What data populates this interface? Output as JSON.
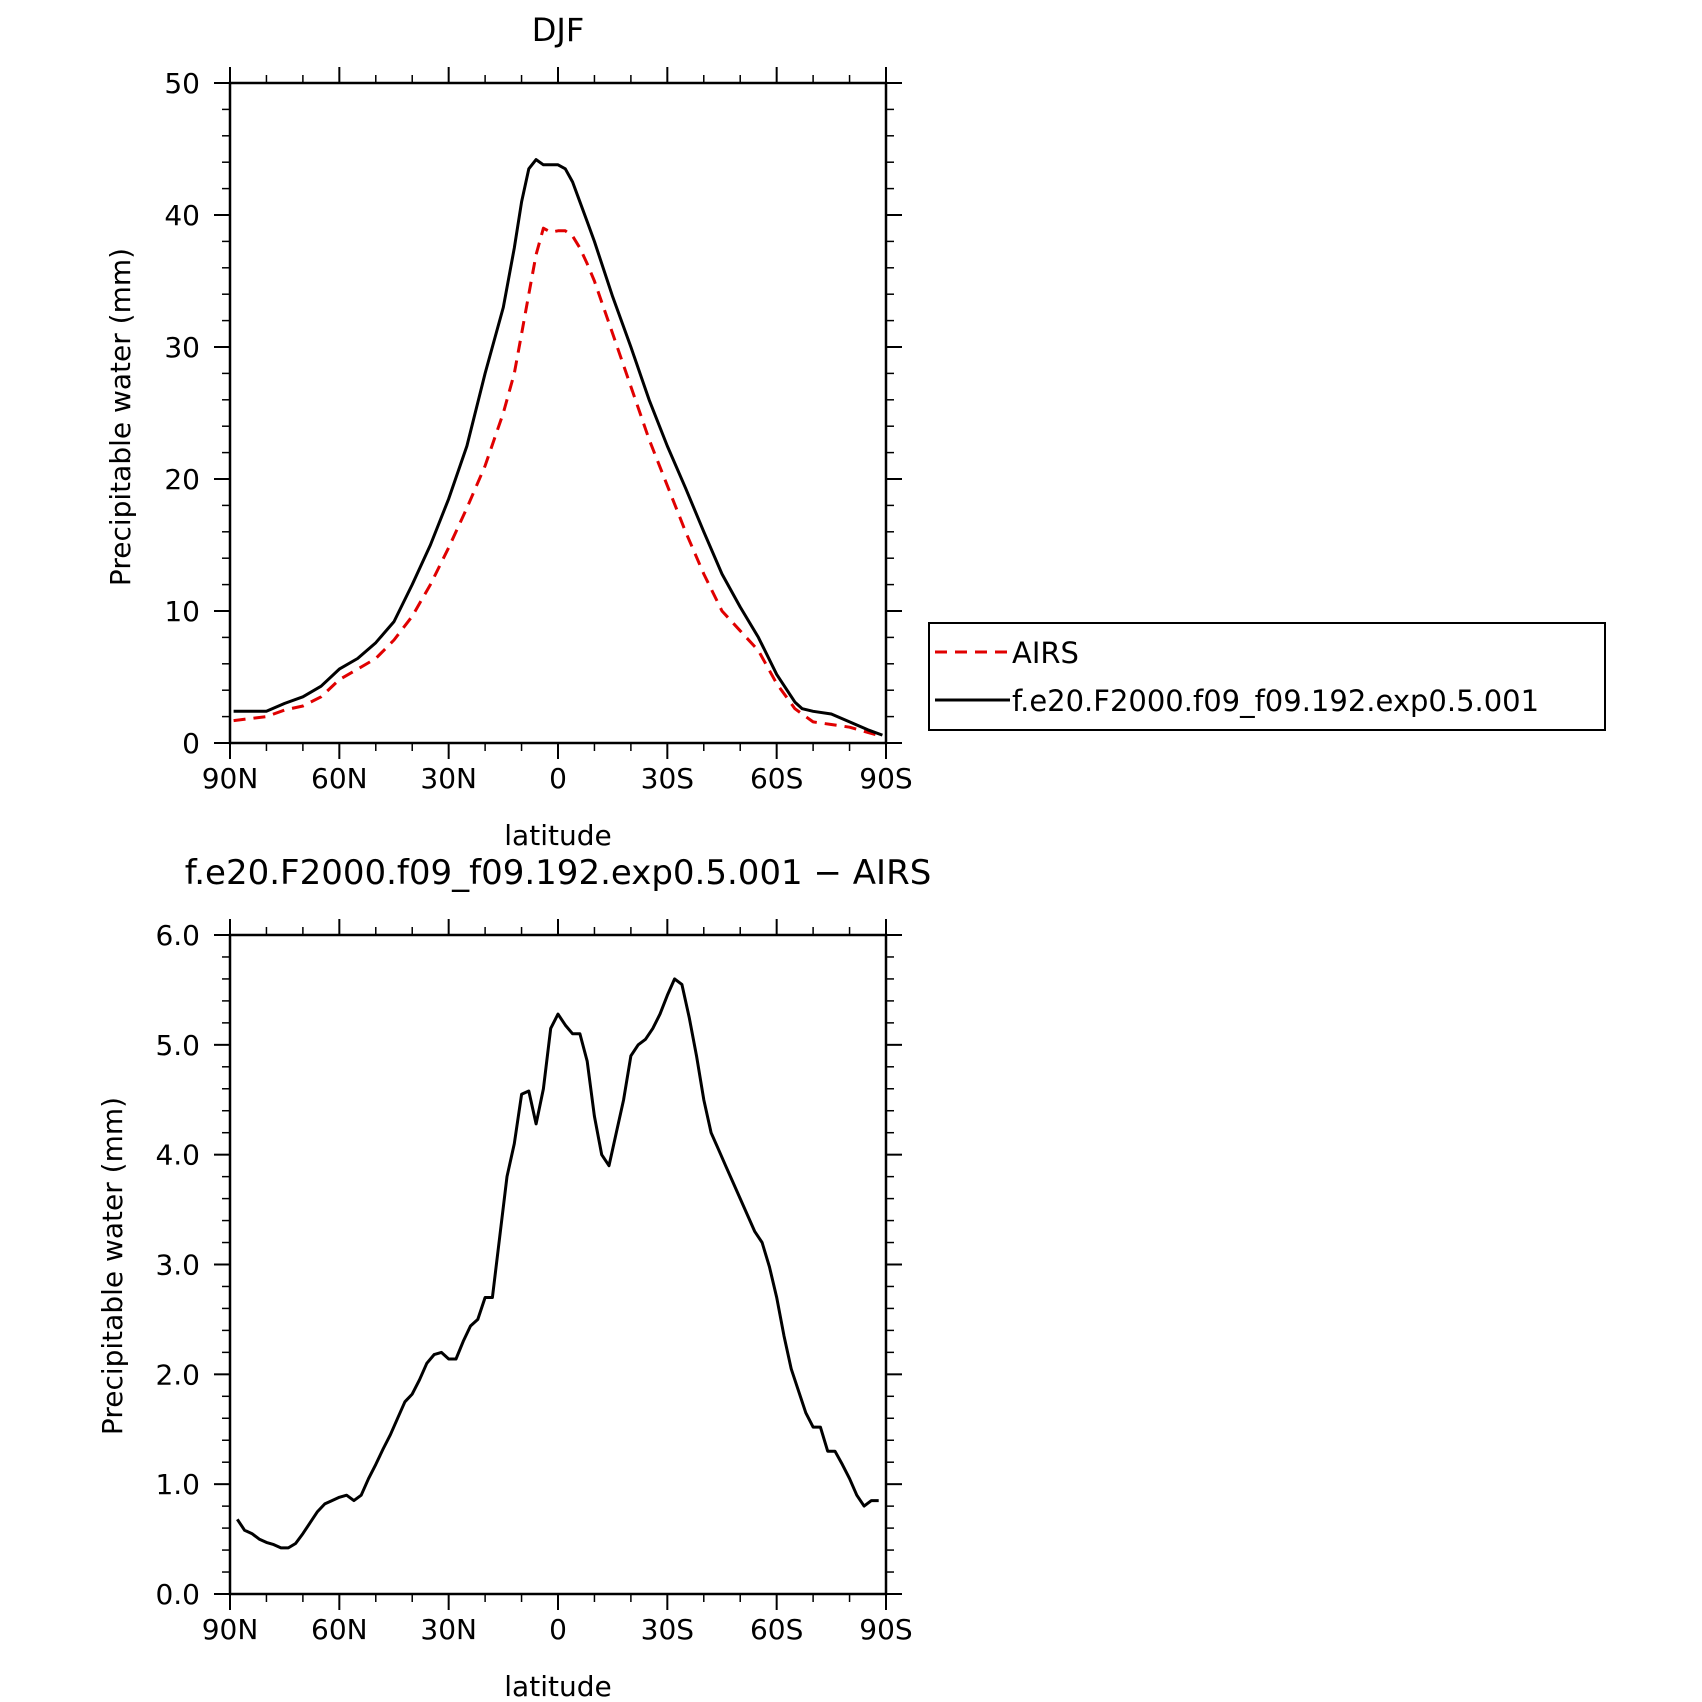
{
  "chart_data": [
    {
      "type": "line",
      "title": "DJF",
      "xlabel": "latitude",
      "ylabel": "Precipitable water (mm)",
      "xlim": [
        90,
        -90
      ],
      "ylim": [
        0,
        50
      ],
      "xticks": [
        90,
        60,
        30,
        0,
        -30,
        -60,
        -90
      ],
      "xtick_labels": [
        "90N",
        "60N",
        "30N",
        "0",
        "30S",
        "60S",
        "90S"
      ],
      "yticks": [
        0,
        10,
        20,
        30,
        40,
        50
      ],
      "ytick_labels": [
        "0",
        "10",
        "20",
        "30",
        "40",
        "50"
      ],
      "legend": {
        "placement": "right",
        "entries": [
          "AIRS",
          "f.e20.F2000.f09_f09.192.exp0.5.001"
        ]
      },
      "series": [
        {
          "name": "AIRS",
          "color": "#e00000",
          "dash": "dashed",
          "x": [
            89,
            80,
            75,
            70,
            65,
            60,
            55,
            50,
            45,
            40,
            35,
            30,
            25,
            20,
            15,
            12,
            10,
            8,
            6,
            4,
            2,
            0,
            -2,
            -4,
            -6,
            -8,
            -10,
            -15,
            -20,
            -25,
            -30,
            -35,
            -40,
            -45,
            -50,
            -55,
            -60,
            -65,
            -67,
            -70,
            -75,
            -80,
            -85,
            -89
          ],
          "y": [
            1.7,
            2.0,
            2.5,
            2.8,
            3.5,
            4.8,
            5.6,
            6.4,
            7.8,
            9.6,
            12,
            14.8,
            17.8,
            21,
            25,
            28,
            31,
            34,
            37,
            39,
            38.7,
            38.8,
            38.8,
            38.4,
            37.5,
            36.3,
            35,
            31,
            27,
            23,
            19.5,
            16,
            12.8,
            10,
            8.5,
            7,
            4.5,
            2.6,
            2.2,
            1.6,
            1.4,
            1.2,
            0.8,
            0.5
          ]
        },
        {
          "name": "f.e20.F2000.f09_f09.192.exp0.5.001",
          "color": "#000000",
          "dash": "solid",
          "x": [
            89,
            80,
            75,
            70,
            65,
            60,
            55,
            50,
            45,
            40,
            35,
            30,
            25,
            20,
            15,
            12,
            10,
            8,
            6,
            4,
            2,
            0,
            -2,
            -4,
            -6,
            -8,
            -10,
            -15,
            -20,
            -25,
            -30,
            -35,
            -40,
            -45,
            -50,
            -55,
            -60,
            -65,
            -67,
            -70,
            -75,
            -80,
            -85,
            -89
          ],
          "y": [
            2.4,
            2.4,
            3.0,
            3.5,
            4.3,
            5.6,
            6.4,
            7.6,
            9.2,
            12,
            15,
            18.5,
            22.5,
            28,
            33,
            37.5,
            41,
            43.5,
            44.2,
            43.8,
            43.8,
            43.8,
            43.5,
            42.5,
            41,
            39.5,
            38,
            33.8,
            30,
            26,
            22.5,
            19.3,
            16,
            12.8,
            10.3,
            8,
            5.2,
            3.1,
            2.6,
            2.4,
            2.2,
            1.6,
            1.0,
            0.6
          ]
        }
      ]
    },
    {
      "type": "line",
      "title": "f.e20.F2000.f09_f09.192.exp0.5.001 − AIRS",
      "xlabel": "latitude",
      "ylabel": "Precipitable water (mm)",
      "xlim": [
        90,
        -90
      ],
      "ylim": [
        0,
        6
      ],
      "xticks": [
        90,
        60,
        30,
        0,
        -30,
        -60,
        -90
      ],
      "xtick_labels": [
        "90N",
        "60N",
        "30N",
        "0",
        "30S",
        "60S",
        "90S"
      ],
      "yticks": [
        0,
        1,
        2,
        3,
        4,
        5,
        6
      ],
      "ytick_labels": [
        "0.0",
        "1.0",
        "2.0",
        "3.0",
        "4.0",
        "5.0",
        "6.0"
      ],
      "series": [
        {
          "color": "#000000",
          "dash": "solid",
          "x": [
            88,
            86,
            84,
            82,
            80,
            78,
            76,
            74,
            72,
            70,
            68,
            66,
            64,
            62,
            60,
            58,
            56,
            54,
            52,
            50,
            48,
            46,
            44,
            42,
            40,
            38,
            36,
            34,
            32,
            30,
            28,
            26,
            24,
            22,
            20,
            18,
            16,
            14,
            12,
            10,
            8,
            6,
            4,
            2,
            0,
            -2,
            -4,
            -6,
            -8,
            -10,
            -12,
            -14,
            -16,
            -18,
            -20,
            -22,
            -24,
            -26,
            -28,
            -30,
            -32,
            -34,
            -36,
            -38,
            -40,
            -42,
            -44,
            -46,
            -48,
            -50,
            -52,
            -54,
            -56,
            -58,
            -60,
            -62,
            -64,
            -66,
            -68,
            -70,
            -72,
            -74,
            -76,
            -78,
            -80,
            -82,
            -84,
            -86,
            -88
          ],
          "y": [
            0.68,
            0.58,
            0.55,
            0.5,
            0.47,
            0.45,
            0.42,
            0.42,
            0.46,
            0.55,
            0.65,
            0.75,
            0.82,
            0.85,
            0.88,
            0.9,
            0.85,
            0.9,
            1.05,
            1.18,
            1.32,
            1.45,
            1.6,
            1.75,
            1.82,
            1.95,
            2.1,
            2.18,
            2.2,
            2.14,
            2.14,
            2.3,
            2.44,
            2.5,
            2.7,
            2.7,
            3.25,
            3.8,
            4.1,
            4.55,
            4.58,
            4.28,
            4.6,
            5.15,
            5.28,
            5.18,
            5.1,
            5.1,
            4.85,
            4.35,
            4.0,
            3.9,
            4.2,
            4.5,
            4.9,
            5.0,
            5.05,
            5.15,
            5.28,
            5.45,
            5.6,
            5.55,
            5.25,
            4.9,
            4.5,
            4.2,
            4.05,
            3.9,
            3.75,
            3.6,
            3.45,
            3.3,
            3.2,
            2.98,
            2.7,
            2.35,
            2.05,
            1.85,
            1.65,
            1.52,
            1.52,
            1.3,
            1.3,
            1.18,
            1.05,
            0.9,
            0.8,
            0.85,
            0.85
          ]
        }
      ]
    }
  ]
}
